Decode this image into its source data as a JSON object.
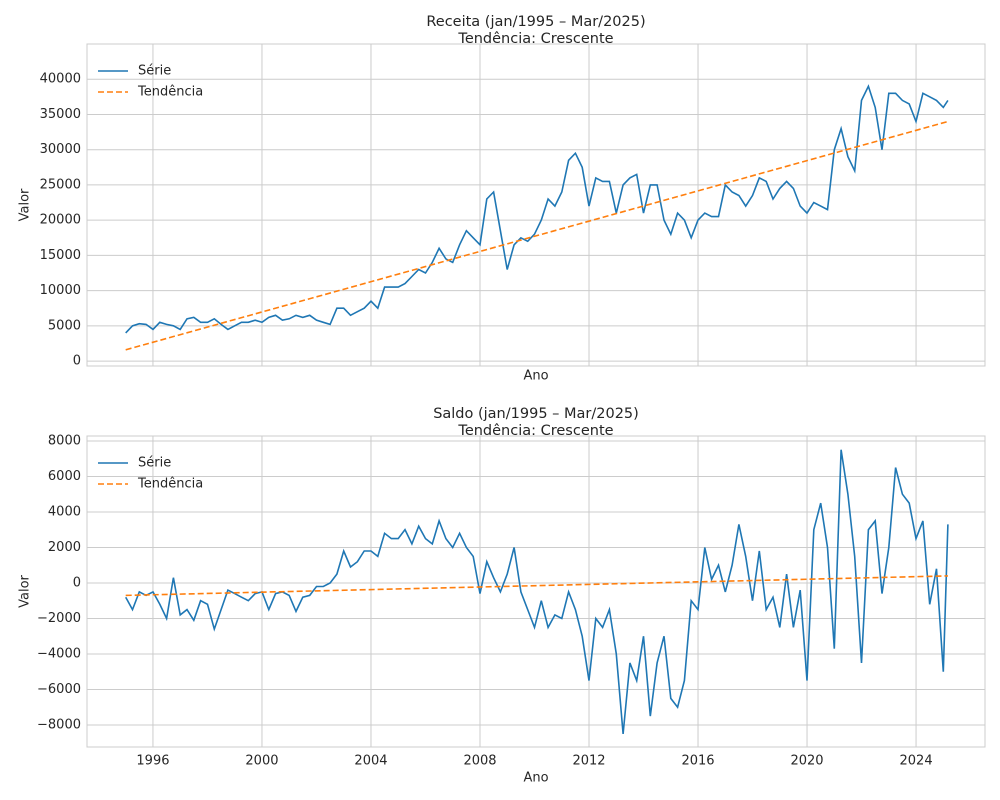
{
  "chart_data": [
    {
      "type": "line",
      "title": "Receita (jan/1995 – Mar/2025)",
      "subtitle": "Tendência: Crescente",
      "xlabel": "Ano",
      "ylabel": "Valor",
      "x": [
        1995,
        1995.25,
        1995.5,
        1995.75,
        1996,
        1996.25,
        1996.5,
        1996.75,
        1997,
        1997.25,
        1997.5,
        1997.75,
        1998,
        1998.25,
        1998.5,
        1998.75,
        1999,
        1999.25,
        1999.5,
        1999.75,
        2000,
        2000.25,
        2000.5,
        2000.75,
        2001,
        2001.25,
        2001.5,
        2001.75,
        2002,
        2002.25,
        2002.5,
        2002.75,
        2003,
        2003.25,
        2003.5,
        2003.75,
        2004,
        2004.25,
        2004.5,
        2004.75,
        2005,
        2005.25,
        2005.5,
        2005.75,
        2006,
        2006.25,
        2006.5,
        2006.75,
        2007,
        2007.25,
        2007.5,
        2007.75,
        2008,
        2008.25,
        2008.5,
        2008.75,
        2009,
        2009.25,
        2009.5,
        2009.75,
        2010,
        2010.25,
        2010.5,
        2010.75,
        2011,
        2011.25,
        2011.5,
        2011.75,
        2012,
        2012.25,
        2012.5,
        2012.75,
        2013,
        2013.25,
        2013.5,
        2013.75,
        2014,
        2014.25,
        2014.5,
        2014.75,
        2015,
        2015.25,
        2015.5,
        2015.75,
        2016,
        2016.25,
        2016.5,
        2016.75,
        2017,
        2017.25,
        2017.5,
        2017.75,
        2018,
        2018.25,
        2018.5,
        2018.75,
        2019,
        2019.25,
        2019.5,
        2019.75,
        2020,
        2020.25,
        2020.5,
        2020.75,
        2021,
        2021.25,
        2021.5,
        2021.75,
        2022,
        2022.25,
        2022.5,
        2022.75,
        2023,
        2023.25,
        2023.5,
        2023.75,
        2024,
        2024.25,
        2024.5,
        2024.75,
        2025,
        2025.17
      ],
      "series": [
        {
          "name": "Série",
          "color": "#1f77b4",
          "values": [
            4000,
            5000,
            5300,
            5200,
            4500,
            5500,
            5200,
            5000,
            4500,
            6000,
            6200,
            5500,
            5500,
            6000,
            5200,
            4500,
            5000,
            5500,
            5500,
            5800,
            5500,
            6200,
            6500,
            5800,
            6000,
            6500,
            6200,
            6500,
            5800,
            5500,
            5200,
            7500,
            7500,
            6500,
            7000,
            7500,
            8500,
            7500,
            10500,
            10500,
            10500,
            11000,
            12000,
            13000,
            12500,
            14000,
            16000,
            14500,
            14000,
            16500,
            18500,
            17500,
            16500,
            23000,
            24000,
            18500,
            13000,
            16500,
            17500,
            17000,
            18000,
            20000,
            23000,
            22000,
            24000,
            28500,
            29500,
            27500,
            22000,
            26000,
            25500,
            25500,
            21000,
            25000,
            26000,
            26500,
            21000,
            25000,
            25000,
            20000,
            18000,
            21000,
            20000,
            17500,
            20000,
            21000,
            20500,
            20500,
            25000,
            24000,
            23500,
            22000,
            23500,
            26000,
            25500,
            23000,
            24500,
            25500,
            24500,
            22000,
            21000,
            22500,
            22000,
            21500,
            30000,
            33000,
            29000,
            27000,
            37000,
            39000,
            36000,
            30000,
            38000,
            38000,
            37000,
            36500,
            34000,
            38000,
            37500,
            37000,
            36000,
            37000
          ]
        },
        {
          "name": "Tendência",
          "color": "#ff7f0e",
          "dashed": true,
          "x": [
            1995,
            2025.17
          ],
          "values": [
            1600,
            34000
          ]
        }
      ],
      "xlim": [
        1993.58,
        2026.53
      ],
      "xticks": [
        1996,
        2000,
        2004,
        2008,
        2012,
        2016,
        2020,
        2024
      ],
      "ylim": [
        -700,
        45000
      ],
      "yticks": [
        0,
        5000,
        10000,
        15000,
        20000,
        25000,
        30000,
        35000,
        40000
      ],
      "grid": true,
      "legend": "upper left"
    },
    {
      "type": "line",
      "title": "Saldo (jan/1995 – Mar/2025)",
      "subtitle": "Tendência: Crescente",
      "xlabel": "Ano",
      "ylabel": "Valor",
      "x": [
        1995,
        1995.25,
        1995.5,
        1995.75,
        1996,
        1996.25,
        1996.5,
        1996.75,
        1997,
        1997.25,
        1997.5,
        1997.75,
        1998,
        1998.25,
        1998.5,
        1998.75,
        1999,
        1999.25,
        1999.5,
        1999.75,
        2000,
        2000.25,
        2000.5,
        2000.75,
        2001,
        2001.25,
        2001.5,
        2001.75,
        2002,
        2002.25,
        2002.5,
        2002.75,
        2003,
        2003.25,
        2003.5,
        2003.75,
        2004,
        2004.25,
        2004.5,
        2004.75,
        2005,
        2005.25,
        2005.5,
        2005.75,
        2006,
        2006.25,
        2006.5,
        2006.75,
        2007,
        2007.25,
        2007.5,
        2007.75,
        2008,
        2008.25,
        2008.5,
        2008.75,
        2009,
        2009.25,
        2009.5,
        2009.75,
        2010,
        2010.25,
        2010.5,
        2010.75,
        2011,
        2011.25,
        2011.5,
        2011.75,
        2012,
        2012.25,
        2012.5,
        2012.75,
        2013,
        2013.25,
        2013.5,
        2013.75,
        2014,
        2014.25,
        2014.5,
        2014.75,
        2015,
        2015.25,
        2015.5,
        2015.75,
        2016,
        2016.25,
        2016.5,
        2016.75,
        2017,
        2017.25,
        2017.5,
        2017.75,
        2018,
        2018.25,
        2018.5,
        2018.75,
        2019,
        2019.25,
        2019.5,
        2019.75,
        2020,
        2020.25,
        2020.5,
        2020.75,
        2021,
        2021.25,
        2021.5,
        2021.75,
        2022,
        2022.25,
        2022.5,
        2022.75,
        2023,
        2023.25,
        2023.5,
        2023.75,
        2024,
        2024.25,
        2024.5,
        2024.75,
        2025,
        2025.17
      ],
      "series": [
        {
          "name": "Série",
          "color": "#1f77b4",
          "values": [
            -800,
            -1500,
            -500,
            -700,
            -500,
            -1200,
            -2000,
            300,
            -1800,
            -1500,
            -2100,
            -1000,
            -1200,
            -2600,
            -1500,
            -400,
            -600,
            -800,
            -1000,
            -600,
            -500,
            -1500,
            -600,
            -500,
            -700,
            -1600,
            -800,
            -700,
            -200,
            -200,
            0,
            500,
            1800,
            900,
            1200,
            1800,
            1800,
            1500,
            2800,
            2500,
            2500,
            3000,
            2200,
            3200,
            2500,
            2200,
            3500,
            2500,
            2000,
            2800,
            2000,
            1500,
            -600,
            1200,
            300,
            -500,
            500,
            2000,
            -500,
            -1500,
            -2500,
            -1000,
            -2500,
            -1800,
            -2000,
            -500,
            -1500,
            -3000,
            -5500,
            -2000,
            -2500,
            -1500,
            -4000,
            -8500,
            -4500,
            -5500,
            -3000,
            -7500,
            -4500,
            -3000,
            -6500,
            -7000,
            -5500,
            -1000,
            -1500,
            2000,
            200,
            1000,
            -500,
            1000,
            3300,
            1500,
            -1000,
            1800,
            -1500,
            -800,
            -2500,
            500,
            -2500,
            -400,
            -5500,
            3000,
            4500,
            2000,
            -3700,
            7500,
            5000,
            1500,
            -4500,
            3000,
            3500,
            -600,
            2000,
            6500,
            5000,
            4500,
            2500,
            3500,
            -1200,
            800,
            -5000,
            3300
          ]
        },
        {
          "name": "Tendência",
          "color": "#ff7f0e",
          "dashed": true,
          "x": [
            1995,
            2025.17
          ],
          "values": [
            -700,
            400
          ]
        }
      ],
      "xlim": [
        1993.58,
        2026.53
      ],
      "xticks": [
        1996,
        2000,
        2004,
        2008,
        2012,
        2016,
        2020,
        2024
      ],
      "ylim": [
        -9240,
        8280
      ],
      "yticks": [
        {
          "value": -8000,
          "label": "−8000"
        },
        {
          "value": -6000,
          "label": "−6000"
        },
        {
          "value": -4000,
          "label": "−4000"
        },
        {
          "value": -2000,
          "label": "−2000"
        },
        0,
        2000,
        4000,
        6000,
        8000
      ],
      "grid": true,
      "legend": "upper left"
    }
  ]
}
